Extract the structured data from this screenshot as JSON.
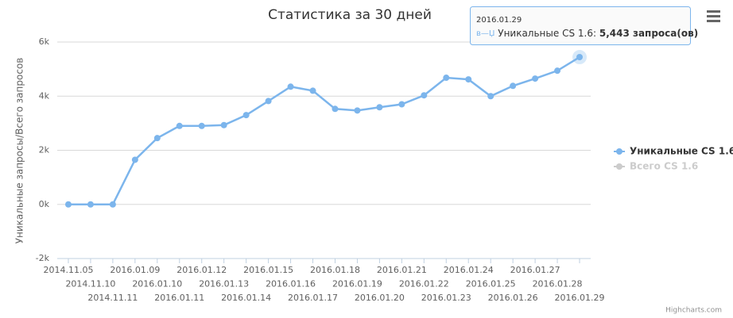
{
  "chart_data": {
    "type": "line",
    "title": "Статистика за 30 дней",
    "y_axis_label": "Уникальные запросы/Всего запросов",
    "categories": [
      "2014.11.05",
      "2014.11.10",
      "2014.11.11",
      "2016.01.09",
      "2016.01.10",
      "2016.01.11",
      "2016.01.12",
      "2016.01.13",
      "2016.01.14",
      "2016.01.15",
      "2016.01.16",
      "2016.01.17",
      "2016.01.18",
      "2016.01.19",
      "2016.01.20",
      "2016.01.21",
      "2016.01.22",
      "2016.01.23",
      "2016.01.24",
      "2016.01.25",
      "2016.01.26",
      "2016.01.27",
      "2016.01.28",
      "2016.01.29"
    ],
    "series": [
      {
        "name": "Уникальные CS 1.6",
        "color": "#7cb5ec",
        "visible": true,
        "values": [
          0,
          0,
          0,
          1650,
          2450,
          2900,
          2900,
          2930,
          3300,
          3820,
          4350,
          4200,
          3530,
          3470,
          3590,
          3700,
          4030,
          4680,
          4620,
          4000,
          4380,
          4650,
          4940,
          5443
        ]
      },
      {
        "name": "Всего CS 1.6",
        "color": "#cccccc",
        "visible": false
      }
    ],
    "ylim": [
      -2000,
      6000
    ],
    "yticks": [
      {
        "value": -2000,
        "label": "-2k"
      },
      {
        "value": 0,
        "label": "0k"
      },
      {
        "value": 2000,
        "label": "2k"
      },
      {
        "value": 4000,
        "label": "4k"
      },
      {
        "value": 6000,
        "label": "6k"
      }
    ],
    "grid": true,
    "legend": "right",
    "tooltip": {
      "category": "2016.01.29",
      "marker": "в—Џ",
      "series": "Уникальные CS 1.6:",
      "label": "5,443 запроса(ов)"
    },
    "credits": "Highcharts.com"
  }
}
